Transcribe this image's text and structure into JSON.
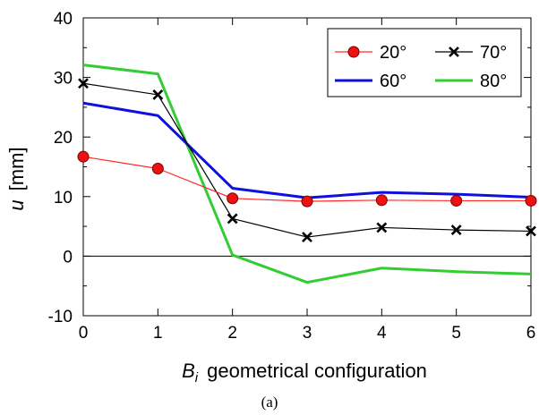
{
  "chart_data": {
    "type": "line",
    "x": [
      0,
      1,
      2,
      3,
      4,
      5,
      6
    ],
    "xlim": [
      0,
      6
    ],
    "ylim": [
      -10,
      40
    ],
    "x_ticks": [
      0,
      1,
      2,
      3,
      4,
      5,
      6
    ],
    "y_ticks": [
      -10,
      0,
      10,
      20,
      30,
      40
    ],
    "xlabel_var": "B",
    "xlabel_sub": "i",
    "xlabel_rest": "geometrical configuration",
    "ylabel_var": "u",
    "ylabel_unit": "[mm]",
    "caption": "(a)",
    "legend_position": "top-right",
    "zero_line": true,
    "series": [
      {
        "name": "20°",
        "color": "#ff2a2a",
        "marker": "circle",
        "values": [
          16.7,
          14.7,
          9.7,
          9.2,
          9.4,
          9.3,
          9.3
        ]
      },
      {
        "name": "70°",
        "color": "#000000",
        "marker": "x",
        "values": [
          29.0,
          27.1,
          6.3,
          3.2,
          4.8,
          4.4,
          4.2
        ]
      },
      {
        "name": "60°",
        "color": "#1010dd",
        "marker": "none",
        "values": [
          25.7,
          23.6,
          11.4,
          9.8,
          10.7,
          10.4,
          9.9
        ]
      },
      {
        "name": "80°",
        "color": "#33cc33",
        "marker": "none",
        "values": [
          32.1,
          30.6,
          0.2,
          -4.4,
          -2.0,
          -2.6,
          -3.0
        ]
      }
    ]
  }
}
